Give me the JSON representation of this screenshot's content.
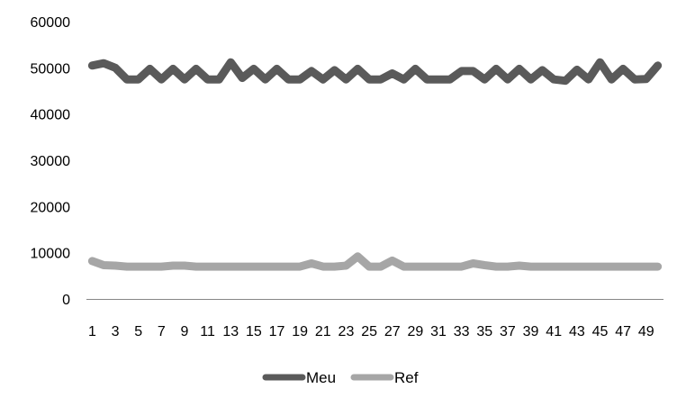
{
  "chart_data": {
    "type": "line",
    "x": [
      1,
      2,
      3,
      4,
      5,
      6,
      7,
      8,
      9,
      10,
      11,
      12,
      13,
      14,
      15,
      16,
      17,
      18,
      19,
      20,
      21,
      22,
      23,
      24,
      25,
      26,
      27,
      28,
      29,
      30,
      31,
      32,
      33,
      34,
      35,
      36,
      37,
      38,
      39,
      40,
      41,
      42,
      43,
      44,
      45,
      46,
      47,
      48,
      49,
      50
    ],
    "x_tick_labels": [
      "1",
      "3",
      "5",
      "7",
      "9",
      "11",
      "13",
      "15",
      "17",
      "19",
      "21",
      "23",
      "25",
      "27",
      "29",
      "31",
      "33",
      "35",
      "37",
      "39",
      "41",
      "43",
      "45",
      "47",
      "49"
    ],
    "ylim": [
      0,
      60000
    ],
    "y_ticks": [
      0,
      10000,
      20000,
      30000,
      40000,
      50000,
      60000
    ],
    "y_tick_labels": [
      "0",
      "10000",
      "20000",
      "30000",
      "40000",
      "50000",
      "60000"
    ],
    "grid": false,
    "legend_position": "bottom",
    "series": [
      {
        "name": "Meu",
        "color": "#5a5a5a",
        "values": [
          50500,
          51000,
          50000,
          47500,
          47500,
          49800,
          47500,
          49800,
          47500,
          49800,
          47500,
          47500,
          51200,
          47800,
          49800,
          47500,
          49800,
          47500,
          47500,
          49300,
          47500,
          49500,
          47500,
          49800,
          47500,
          47500,
          48800,
          47500,
          49800,
          47500,
          47500,
          47500,
          49300,
          49300,
          47500,
          49800,
          47500,
          49800,
          47500,
          49500,
          47500,
          47200,
          49600,
          47500,
          51200,
          47500,
          49800,
          47500,
          47600,
          50500
        ]
      },
      {
        "name": "Ref",
        "color": "#a6a6a6",
        "values": [
          8200,
          7300,
          7200,
          7000,
          7000,
          7000,
          7000,
          7200,
          7200,
          7000,
          7000,
          7000,
          7000,
          7000,
          7000,
          7000,
          7000,
          7000,
          7000,
          7700,
          7000,
          7000,
          7200,
          9200,
          7000,
          7000,
          8300,
          7000,
          7000,
          7000,
          7000,
          7000,
          7000,
          7700,
          7300,
          7000,
          7000,
          7200,
          7000,
          7000,
          7000,
          7000,
          7000,
          7000,
          7000,
          7000,
          7000,
          7000,
          7000,
          7000
        ]
      }
    ]
  }
}
